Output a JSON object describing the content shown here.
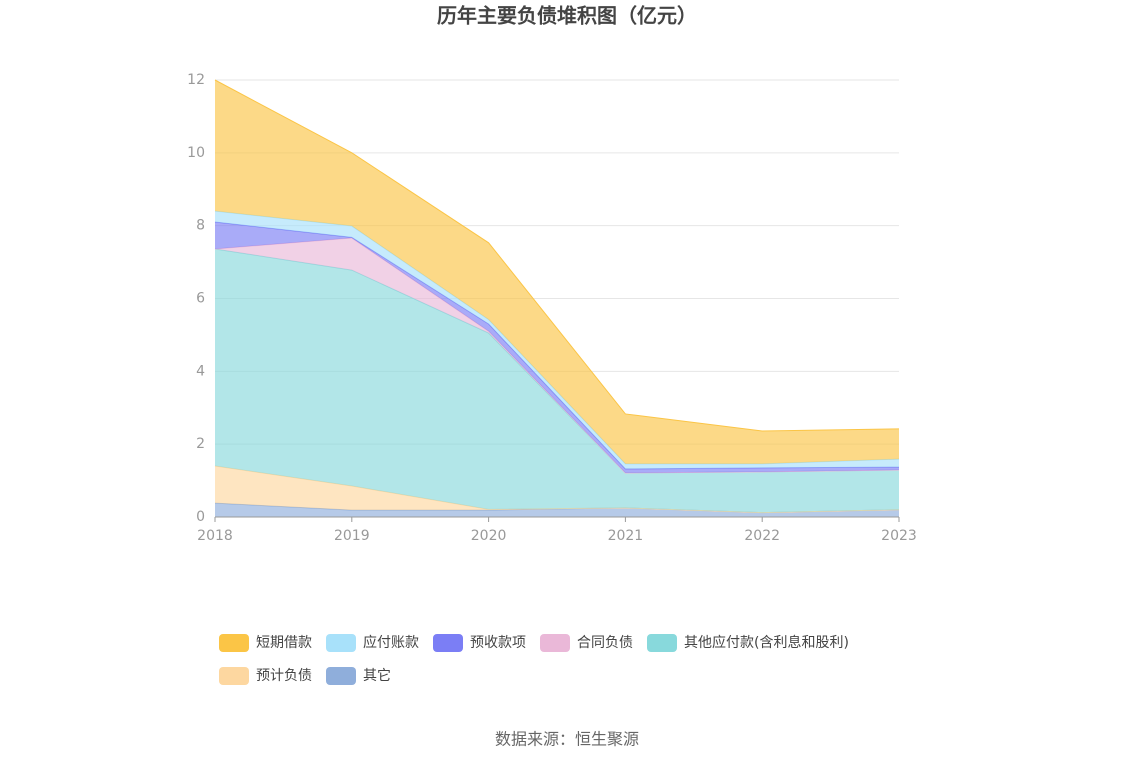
{
  "chart_data": {
    "type": "stacked-area",
    "title": "历年主要负债堆积图（亿元）",
    "categories": [
      "2018",
      "2019",
      "2020",
      "2021",
      "2022",
      "2023"
    ],
    "ylim": [
      0,
      12
    ],
    "yticks": [
      0,
      2,
      4,
      6,
      8,
      10,
      12
    ],
    "grid": true,
    "series": [
      {
        "name": "其它",
        "color": "#8faedb",
        "values": [
          0.38,
          0.19,
          0.19,
          0.25,
          0.12,
          0.2
        ]
      },
      {
        "name": "预计负债",
        "color": "#fdd7a0",
        "values": [
          1.02,
          0.66,
          0.02,
          0,
          0,
          0
        ]
      },
      {
        "name": "其他应付款(含利息和股利)",
        "color": "#88d9dc",
        "values": [
          5.96,
          5.93,
          4.84,
          0.96,
          1.12,
          1.09
        ]
      },
      {
        "name": "合同负债",
        "color": "#eab8d8",
        "values": [
          0,
          0.88,
          0.05,
          0,
          0,
          0
        ]
      },
      {
        "name": "预收款项",
        "color": "#7b7ef5",
        "values": [
          0.74,
          0.02,
          0.2,
          0.11,
          0.11,
          0.08
        ]
      },
      {
        "name": "应付账款",
        "color": "#a8e1fa",
        "values": [
          0.3,
          0.31,
          0.12,
          0.14,
          0.11,
          0.22
        ]
      },
      {
        "name": "短期借款",
        "color": "#fbc546",
        "values": [
          3.6,
          2.01,
          2.11,
          1.37,
          0.9,
          0.83
        ]
      }
    ],
    "legend_order": [
      6,
      5,
      4,
      3,
      2,
      1,
      0
    ],
    "source": "数据来源：恒生聚源"
  }
}
